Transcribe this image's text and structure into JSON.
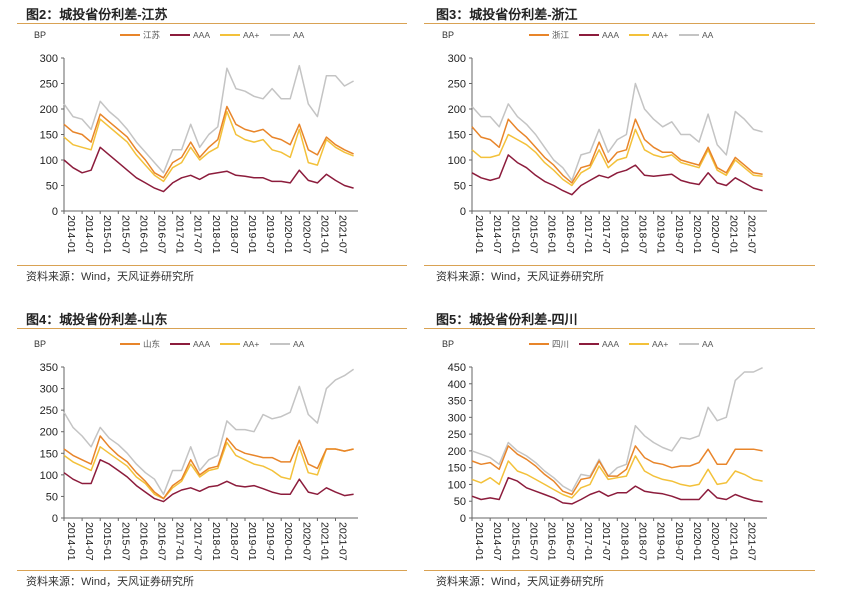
{
  "source_text": "资料来源：Wind，天风证券研究所",
  "colors": {
    "province": "#e8852a",
    "AAA": "#8c1c3c",
    "AA+": "#f3c13a",
    "AA": "#c4c4c4",
    "rule": "#d9a253"
  },
  "chart_data": [
    {
      "type": "line",
      "title": "图2：城投省份利差-江苏",
      "ylabel": "BP",
      "ylim": [
        0,
        300
      ],
      "yticks": [
        0,
        50,
        100,
        150,
        200,
        250,
        300
      ],
      "xticks": [
        "2014-01",
        "2014-07",
        "2015-01",
        "2015-07",
        "2016-01",
        "2016-07",
        "2017-01",
        "2017-07",
        "2018-01",
        "2018-07",
        "2019-01",
        "2019-07",
        "2020-01",
        "2020-07",
        "2021-01",
        "2021-07"
      ],
      "legend": "top",
      "series": [
        {
          "name": "江苏",
          "values": [
            170,
            155,
            150,
            135,
            190,
            175,
            160,
            145,
            120,
            100,
            75,
            65,
            95,
            105,
            135,
            105,
            125,
            140,
            205,
            170,
            160,
            155,
            160,
            145,
            140,
            130,
            170,
            120,
            110,
            145,
            130,
            120,
            112
          ]
        },
        {
          "name": "AAA",
          "values": [
            100,
            85,
            75,
            80,
            125,
            110,
            95,
            80,
            65,
            55,
            45,
            38,
            55,
            65,
            70,
            62,
            72,
            75,
            78,
            70,
            68,
            65,
            65,
            58,
            58,
            55,
            80,
            60,
            55,
            72,
            60,
            50,
            45
          ]
        },
        {
          "name": "AA+",
          "values": [
            145,
            130,
            125,
            120,
            180,
            165,
            150,
            135,
            110,
            90,
            70,
            58,
            85,
            95,
            125,
            100,
            115,
            125,
            195,
            150,
            140,
            135,
            140,
            120,
            115,
            105,
            160,
            95,
            90,
            140,
            125,
            115,
            108
          ]
        },
        {
          "name": "AA",
          "values": [
            210,
            185,
            180,
            160,
            215,
            195,
            180,
            160,
            135,
            115,
            95,
            75,
            120,
            120,
            170,
            125,
            150,
            165,
            280,
            240,
            235,
            225,
            220,
            240,
            220,
            220,
            285,
            210,
            185,
            265,
            265,
            245,
            255
          ]
        }
      ]
    },
    {
      "type": "line",
      "title": "图3：城投省份利差-浙江",
      "ylabel": "BP",
      "ylim": [
        0,
        300
      ],
      "yticks": [
        0,
        50,
        100,
        150,
        200,
        250,
        300
      ],
      "xticks": [
        "2014-01",
        "2014-07",
        "2015-01",
        "2015-07",
        "2016-01",
        "2016-07",
        "2017-01",
        "2017-07",
        "2018-01",
        "2018-07",
        "2019-01",
        "2019-07",
        "2020-01",
        "2020-07",
        "2021-01",
        "2021-07"
      ],
      "legend": "top",
      "series": [
        {
          "name": "浙江",
          "values": [
            165,
            145,
            140,
            125,
            180,
            160,
            145,
            125,
            105,
            90,
            70,
            55,
            85,
            90,
            135,
            95,
            115,
            120,
            180,
            140,
            125,
            115,
            115,
            100,
            95,
            90,
            125,
            85,
            75,
            105,
            90,
            75,
            72
          ]
        },
        {
          "name": "AAA",
          "values": [
            75,
            65,
            60,
            65,
            110,
            95,
            85,
            70,
            58,
            50,
            40,
            32,
            50,
            60,
            70,
            65,
            75,
            80,
            90,
            70,
            68,
            70,
            72,
            60,
            55,
            52,
            75,
            55,
            50,
            65,
            55,
            45,
            40
          ]
        },
        {
          "name": "AA+",
          "values": [
            120,
            105,
            105,
            110,
            150,
            140,
            130,
            115,
            95,
            80,
            62,
            50,
            75,
            85,
            120,
            85,
            100,
            105,
            160,
            120,
            110,
            105,
            110,
            95,
            90,
            85,
            120,
            80,
            70,
            100,
            85,
            70,
            68
          ]
        },
        {
          "name": "AA",
          "values": [
            205,
            185,
            185,
            165,
            210,
            185,
            170,
            150,
            125,
            100,
            85,
            60,
            110,
            115,
            160,
            115,
            140,
            150,
            250,
            200,
            180,
            165,
            175,
            150,
            150,
            135,
            190,
            130,
            110,
            195,
            180,
            160,
            155
          ]
        }
      ]
    },
    {
      "type": "line",
      "title": "图4：城投省份利差-山东",
      "ylabel": "BP",
      "ylim": [
        0,
        350
      ],
      "yticks": [
        0,
        50,
        100,
        150,
        200,
        250,
        300,
        350
      ],
      "xticks": [
        "2014-01",
        "2014-07",
        "2015-01",
        "2015-07",
        "2016-01",
        "2016-07",
        "2017-01",
        "2017-07",
        "2018-01",
        "2018-07",
        "2019-01",
        "2019-07",
        "2020-01",
        "2020-07",
        "2021-01",
        "2021-07"
      ],
      "legend": "top",
      "series": [
        {
          "name": "山东",
          "values": [
            160,
            145,
            135,
            125,
            190,
            165,
            145,
            130,
            105,
            85,
            60,
            45,
            75,
            90,
            135,
            100,
            115,
            120,
            185,
            160,
            150,
            145,
            140,
            140,
            130,
            130,
            180,
            125,
            115,
            160,
            160,
            155,
            160
          ]
        },
        {
          "name": "AAA",
          "values": [
            105,
            90,
            80,
            80,
            135,
            125,
            110,
            95,
            75,
            60,
            45,
            38,
            55,
            65,
            70,
            62,
            72,
            75,
            85,
            75,
            72,
            75,
            68,
            60,
            55,
            55,
            90,
            60,
            55,
            70,
            60,
            52,
            55
          ]
        },
        {
          "name": "AA+",
          "values": [
            145,
            130,
            120,
            110,
            165,
            150,
            135,
            120,
            95,
            80,
            55,
            45,
            70,
            85,
            125,
            95,
            110,
            115,
            175,
            145,
            135,
            125,
            120,
            110,
            95,
            90,
            165,
            105,
            100,
            160,
            160,
            155,
            160
          ]
        },
        {
          "name": "AA",
          "values": [
            245,
            210,
            190,
            165,
            210,
            185,
            170,
            150,
            125,
            105,
            90,
            55,
            110,
            110,
            165,
            110,
            135,
            145,
            225,
            205,
            205,
            200,
            240,
            230,
            235,
            245,
            305,
            240,
            220,
            300,
            320,
            330,
            345
          ]
        }
      ]
    },
    {
      "type": "line",
      "title": "图5：城投省份利差-四川",
      "ylabel": "BP",
      "ylim": [
        0,
        450
      ],
      "yticks": [
        0,
        50,
        100,
        150,
        200,
        250,
        300,
        350,
        400,
        450
      ],
      "xticks": [
        "2014-01",
        "2014-07",
        "2015-01",
        "2015-07",
        "2016-01",
        "2016-07",
        "2017-01",
        "2017-07",
        "2018-01",
        "2018-07",
        "2019-01",
        "2019-07",
        "2020-01",
        "2020-07",
        "2021-01",
        "2021-07"
      ],
      "legend": "top",
      "series": [
        {
          "name": "四川",
          "values": [
            170,
            160,
            165,
            145,
            215,
            190,
            175,
            155,
            130,
            110,
            80,
            70,
            115,
            120,
            170,
            125,
            125,
            145,
            215,
            180,
            165,
            160,
            150,
            155,
            155,
            165,
            205,
            160,
            160,
            205,
            205,
            205,
            200
          ]
        },
        {
          "name": "AAA",
          "values": [
            65,
            55,
            60,
            55,
            120,
            110,
            90,
            80,
            70,
            60,
            45,
            42,
            55,
            70,
            80,
            65,
            75,
            75,
            95,
            80,
            75,
            72,
            65,
            55,
            55,
            55,
            85,
            60,
            55,
            70,
            60,
            52,
            48
          ]
        },
        {
          "name": "AA+",
          "values": [
            115,
            105,
            120,
            100,
            170,
            140,
            130,
            115,
            100,
            85,
            70,
            60,
            90,
            100,
            155,
            115,
            120,
            125,
            185,
            140,
            125,
            115,
            110,
            100,
            95,
            100,
            145,
            100,
            105,
            140,
            130,
            115,
            110
          ]
        },
        {
          "name": "AA",
          "values": [
            200,
            190,
            180,
            160,
            225,
            200,
            185,
            165,
            140,
            120,
            95,
            80,
            130,
            125,
            175,
            125,
            150,
            160,
            275,
            245,
            225,
            210,
            200,
            240,
            235,
            245,
            330,
            290,
            300,
            410,
            435,
            435,
            448
          ]
        }
      ]
    }
  ]
}
